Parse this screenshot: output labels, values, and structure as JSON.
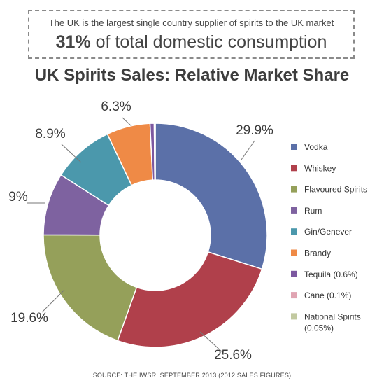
{
  "callout": {
    "line1": "The UK is the largest single country supplier of spirits to the UK market",
    "line2_strong": "31%",
    "line2_rest": " of total domestic consumption"
  },
  "source": "SOURCE: THE IWSR, SEPTEMBER 2013 (2012 SALES FIGURES)",
  "chart_data": {
    "type": "pie",
    "variant": "donut",
    "title": "UK Spirits Sales: Relative Market Share",
    "legend_position": "right",
    "series": [
      {
        "name": "Vodka",
        "value": 29.9,
        "label": "29.9%",
        "color": "#5b70a8"
      },
      {
        "name": "Whiskey",
        "value": 25.6,
        "label": "25.6%",
        "color": "#b0404b"
      },
      {
        "name": "Flavoured Spirits",
        "value": 19.6,
        "label": "19.6%",
        "color": "#95a05a"
      },
      {
        "name": "Rum",
        "value": 9.0,
        "label": "9%",
        "color": "#7e62a0"
      },
      {
        "name": "Gin/Genever",
        "value": 8.9,
        "label": "8.9%",
        "color": "#4b98ac"
      },
      {
        "name": "Brandy",
        "value": 6.3,
        "label": "6.3%",
        "color": "#ef8a46"
      },
      {
        "name": "Tequila (0.6%)",
        "value": 0.6,
        "label": "",
        "color": "#7c58a0"
      },
      {
        "name": "Cane (0.1%)",
        "value": 0.1,
        "label": "",
        "color": "#e0a4b2"
      },
      {
        "name": "National Spirits (0.05%)",
        "value": 0.05,
        "label": "",
        "color": "#c2c9a0"
      }
    ]
  }
}
